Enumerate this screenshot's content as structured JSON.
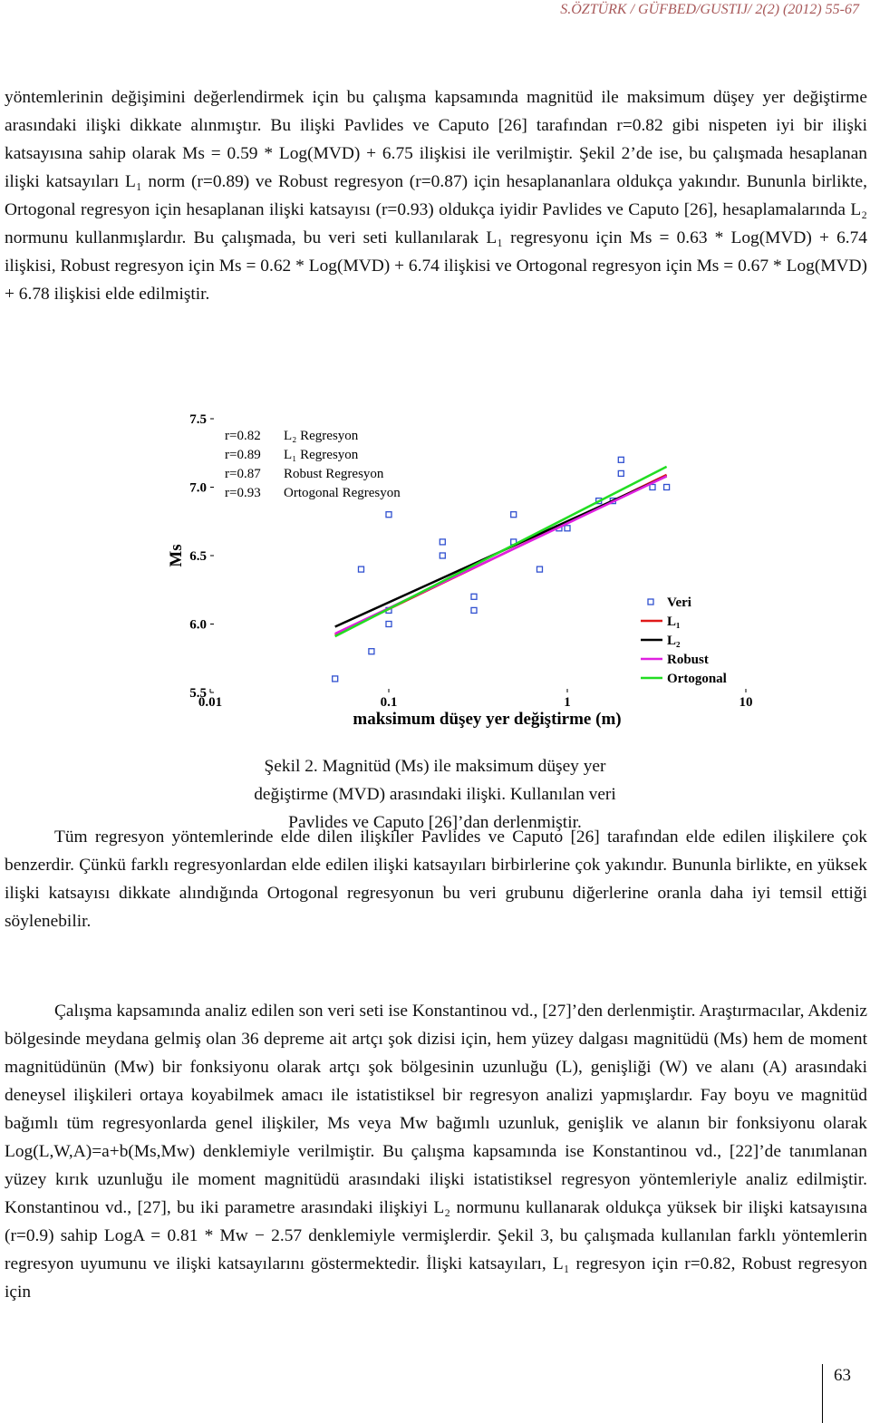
{
  "header": "S.ÖZTÜRK / GÜFBED/GUSTIJ/ 2(2) (2012) 55-67",
  "paragraphs": [
    "yöntemlerinin değişimini değerlendirmek için bu çalışma kapsamında magnitüd ile maksimum düşey yer değiştirme arasındaki ilişki dikkate alınmıştır. Bu ilişki Pavlides ve Caputo [26] tarafından r=0.82 gibi nispeten iyi bir ilişki katsayısına sahip olarak Ms = 0.59 * Log(MVD) + 6.75 ilişkisi ile verilmiştir. Şekil 2’de ise, bu çalışmada hesaplanan ilişki katsayıları L₁ norm (r=0.89) ve Robust regresyon (r=0.87) için hesaplananlara oldukça yakındır. Bununla birlikte, Ortogonal regresyon için hesaplanan ilişki katsayısı (r=0.93) oldukça iyidir Pavlides ve Caputo [26], hesaplamalarında L₂ normunu kullanmışlardır. Bu çalışmada, bu veri seti kullanılarak L₁ regresyonu için Ms = 0.63 * Log(MVD) + 6.74 ilişkisi, Robust regresyon için Ms = 0.62 * Log(MVD) + 6.74 ilişkisi ve Ortogonal regresyon için Ms = 0.67 * Log(MVD) + 6.78 ilişkisi elde edilmiştir.",
    "Tüm regresyon yöntemlerinde elde dilen ilişkiler Pavlides ve Caputo [26] tarafından elde edilen ilişkilere çok benzerdir. Çünkü farklı regresyonlardan elde edilen ilişki katsayıları birbirlerine çok yakındır. Bununla birlikte, en yüksek ilişki katsayısı dikkate alındığında Ortogonal regresyonun bu veri grubunu diğerlerine oranla daha iyi temsil ettiği söylenebilir.",
    "Çalışma kapsamında analiz edilen son veri seti ise Konstantinou vd., [27]’den derlenmiştir. Araştırmacılar, Akdeniz bölgesinde meydana gelmiş olan 36 depreme ait artçı şok dizisi için, hem yüzey dalgası magnitüdü (Ms) hem de moment magnitüdünün (Mw) bir fonksiyonu olarak artçı şok bölgesinin uzunluğu (L), genişliği (W) ve alanı (A) arasındaki deneysel ilişkileri ortaya koyabilmek amacı ile istatistiksel bir regresyon analizi yapmışlardır. Fay boyu ve magnitüd bağımlı tüm regresyonlarda genel ilişkiler, Ms veya Mw bağımlı uzunluk, genişlik ve alanın bir fonksiyonu olarak Log(L,W,A)=a+b(Ms,Mw) denklemiyle verilmiştir. Bu çalışma kapsamında ise Konstantinou vd., [22]’de tanımlanan yüzey kırık uzunluğu ile moment magnitüdü arasındaki ilişki istatistiksel regresyon yöntemleriyle analiz edilmiştir. Konstantinou vd., [27], bu iki parametre arasındaki ilişkiyi L₂ normunu kullanarak oldukça yüksek bir ilişki katsayısına (r=0.9) sahip LogA = 0.81 * Mw − 2.57 denklemiyle vermişlerdir. Şekil 3, bu çalışmada kullanılan farklı yöntemlerin regresyon uyumunu ve ilişki katsayılarını göstermektedir. İlişki katsayıları, L₁ regresyon için r=0.82, Robust regresyon için"
  ],
  "caption": "Şekil 2. Magnitüd (Ms) ile maksimum düşey yer değiştirme (MVD) arasındaki ilişki. Kullanılan veri Pavlides ve Caputo [26]’dan derlenmiştir.",
  "page_number": "63",
  "chart_data": {
    "type": "scatter",
    "xlabel": "maksimum düşey yer değiştirme (m)",
    "ylabel": "Ms",
    "xscale": "log",
    "xlim": [
      0.01,
      10
    ],
    "xticks": [
      0.01,
      0.1,
      1,
      10
    ],
    "ylim": [
      5.5,
      7.5
    ],
    "yticks": [
      5.5,
      {
        "value": 6,
        "label": "6.0"
      },
      6.5,
      {
        "value": 7,
        "label": "7.0"
      },
      7.5
    ],
    "legend": "lower right",
    "annotations": [
      {
        "r": "r=0.82",
        "label": "L₂ Regresyon"
      },
      {
        "r": "r=0.89",
        "label": "L₁ Regresyon"
      },
      {
        "r": "r=0.87",
        "label": "Robust Regresyon"
      },
      {
        "r": "r=0.93",
        "label": "Ortogonal Regresyon"
      }
    ],
    "series": [
      {
        "name": "Veri",
        "type": "scatter",
        "color": "#3050d0",
        "x": [
          0.05,
          0.08,
          0.07,
          0.1,
          0.1,
          0.1,
          0.2,
          0.2,
          0.3,
          0.3,
          0.5,
          0.5,
          0.7,
          0.9,
          1.0,
          1.5,
          1.8,
          2,
          2,
          3,
          3.6
        ],
        "values": [
          5.6,
          5.8,
          6.4,
          6.1,
          6.0,
          6.8,
          6.6,
          6.5,
          6.2,
          6.1,
          6.8,
          6.6,
          6.4,
          6.7,
          6.7,
          6.9,
          6.9,
          7.2,
          7.1,
          7.0,
          7.0
        ]
      },
      {
        "name": "L₁",
        "type": "line",
        "color": "#e01818",
        "x": [
          0.05,
          3.6
        ],
        "values": [
          5.92,
          7.09
        ]
      },
      {
        "name": "L₂",
        "type": "line",
        "color": "#000000",
        "x": [
          0.05,
          3.6
        ],
        "values": [
          5.98,
          7.08
        ]
      },
      {
        "name": "Robust",
        "type": "line",
        "color": "#e020e0",
        "x": [
          0.05,
          3.6
        ],
        "values": [
          5.93,
          7.08
        ]
      },
      {
        "name": "Ortogonal",
        "type": "line",
        "color": "#22dd22",
        "x": [
          0.05,
          3.6
        ],
        "values": [
          5.91,
          7.15
        ]
      }
    ]
  }
}
